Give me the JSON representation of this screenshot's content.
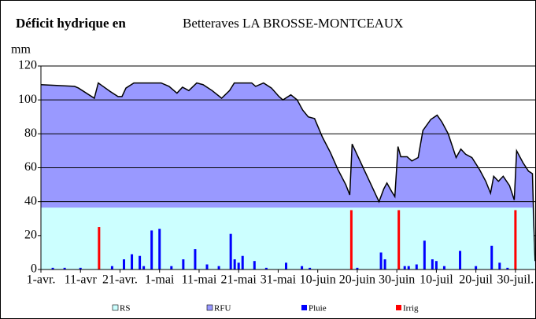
{
  "chart_data": {
    "type": "combo",
    "title": "Déficit hydrique en",
    "subtitle": "Betteraves LA BROSSE-MONTCEAUX",
    "y_label": "mm",
    "xlim": [
      0,
      125
    ],
    "xticks": [
      {
        "value": 0,
        "label": "1-avr."
      },
      {
        "value": 10,
        "label": "11-avr"
      },
      {
        "value": 20,
        "label": "21-avr."
      },
      {
        "value": 30,
        "label": "1-mai"
      },
      {
        "value": 40,
        "label": "11-mai"
      },
      {
        "value": 50,
        "label": "21-mai"
      },
      {
        "value": 60,
        "label": "31-mai"
      },
      {
        "value": 70,
        "label": "10-juin"
      },
      {
        "value": 80,
        "label": "20-juin"
      },
      {
        "value": 90,
        "label": "30-juin"
      },
      {
        "value": 100,
        "label": "10-juil"
      },
      {
        "value": 110,
        "label": "20-juil"
      },
      {
        "value": 120,
        "label": "30-juil."
      }
    ],
    "ylim": [
      0,
      120
    ],
    "yticks": [
      0,
      20,
      40,
      60,
      80,
      100,
      120
    ],
    "grid": true,
    "legend": "bottom",
    "series": [
      {
        "name": "RFU",
        "type": "area",
        "color": "#9999ff",
        "line_color": "#000000",
        "x": [
          0,
          8.5,
          9.5,
          13.5,
          14.5,
          17.5,
          19.5,
          20.5,
          21.5,
          23.5,
          30.4,
          32.4,
          34.4,
          35.8,
          37.4,
          39.4,
          41,
          43.3,
          45.7,
          47.7,
          48.9,
          53.3,
          54.3,
          56.3,
          58.3,
          60.2,
          61.2,
          63.2,
          64.8,
          66.2,
          67.6,
          69.2,
          71.2,
          73.2,
          75.1,
          77.1,
          78.1,
          78.7,
          85.5,
          86.7,
          87.5,
          88.7,
          89.5,
          90.3,
          91,
          92.6,
          93.8,
          95.4,
          96.6,
          98.6,
          100.2,
          101.4,
          103,
          105,
          106.2,
          107.4,
          109,
          110.9,
          112.5,
          113.7,
          114.5,
          115.7,
          116.9,
          118.5,
          119.7,
          120.3,
          121.9,
          123.3,
          124.3,
          124.9
        ],
        "values": [
          109,
          108,
          107,
          101,
          110,
          105,
          102,
          102,
          107,
          110,
          110,
          108,
          104,
          107.5,
          105.5,
          110,
          109,
          105.5,
          101,
          105.5,
          110,
          110,
          108,
          110,
          107,
          102,
          100,
          103,
          100,
          94,
          90,
          89,
          78,
          69,
          59,
          50,
          44,
          74,
          40,
          47.5,
          51,
          46,
          43,
          72.5,
          66.5,
          66.5,
          64,
          66,
          82,
          88.5,
          91,
          87,
          80,
          66,
          71,
          68,
          66,
          59,
          52,
          45,
          55,
          52,
          55,
          49.5,
          41,
          70,
          63,
          58,
          56.5,
          5
        ]
      },
      {
        "name": "RS",
        "type": "area",
        "color": "#ccffff",
        "x": [
          0,
          124.3,
          124.9
        ],
        "values": [
          36.5,
          36.5,
          0
        ]
      },
      {
        "name": "Pluie",
        "type": "bar",
        "color": "#0000ff",
        "x": [
          3,
          6,
          10,
          18,
          21,
          23,
          25,
          26,
          28,
          30,
          33,
          36,
          39,
          42,
          45,
          48,
          49,
          50,
          51,
          54,
          57,
          62,
          66,
          68,
          80,
          86,
          87,
          92,
          93,
          95,
          97,
          99,
          100,
          102,
          106,
          110,
          114,
          116,
          118
        ],
        "values": [
          1,
          1,
          1,
          2,
          6,
          9,
          8,
          2,
          23,
          24,
          2,
          6,
          12,
          3,
          2,
          21,
          6,
          4,
          8,
          5,
          1,
          4,
          2,
          1,
          1,
          10,
          6,
          2,
          2,
          3,
          17,
          6,
          5,
          2,
          11,
          2,
          14,
          4,
          1
        ]
      },
      {
        "name": "Irrig",
        "type": "bar",
        "color": "#ff0000",
        "x": [
          14.7,
          78.5,
          90.5,
          120
        ],
        "values": [
          25,
          35,
          35,
          35
        ]
      }
    ]
  }
}
